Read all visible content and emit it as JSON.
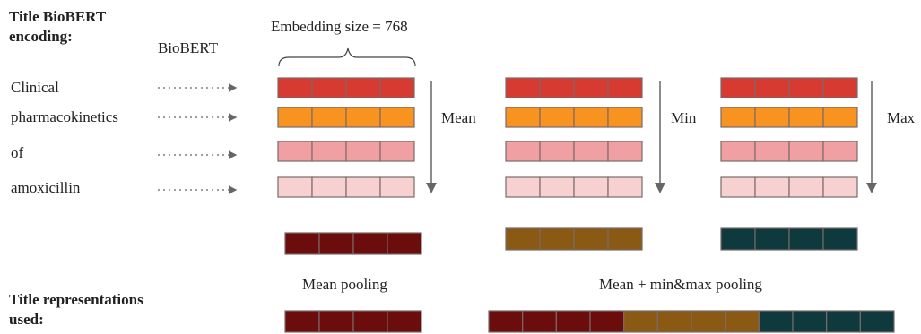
{
  "header": {
    "title_encoding_line1": "Title BioBERT",
    "title_encoding_line2": "encoding:",
    "biobert_label": "BioBERT",
    "embedding_size_label": "Embedding size = 768"
  },
  "tokens": [
    "Clinical",
    "pharmacokinetics",
    "of",
    "amoxicillin"
  ],
  "token_colors": [
    "#d63a30",
    "#f7931e",
    "#f0a0a3",
    "#f7d0d0"
  ],
  "border_color": "#7a6a6a",
  "pooling_groups": [
    {
      "label": "Mean",
      "result_color": "#6b0d0d"
    },
    {
      "label": "Min",
      "result_color": "#8a5a14"
    },
    {
      "label": "Max",
      "result_color": "#0e3a3d"
    }
  ],
  "cells_per_vector": 4,
  "bottom": {
    "title_repr_line1": "Title representations",
    "title_repr_line2": "used:",
    "mean_pooling_label": "Mean pooling",
    "mean_minmax_label": "Mean + min&max pooling"
  }
}
